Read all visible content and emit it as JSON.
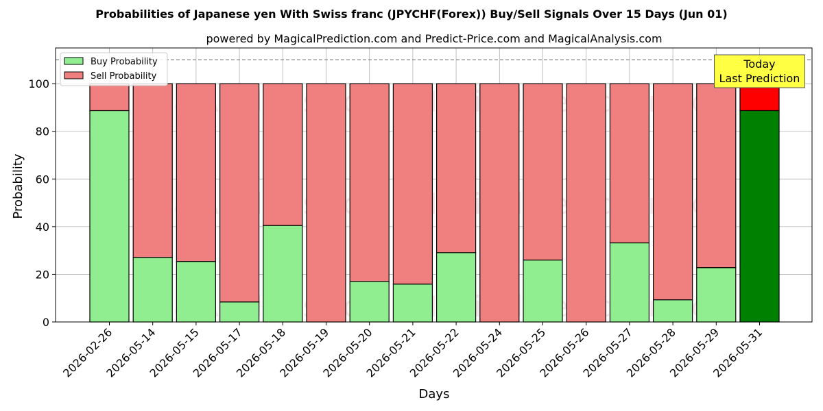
{
  "chart_data": {
    "type": "bar",
    "stacked": true,
    "title": "Probabilities of Japanese yen With Swiss franc (JPYCHF(Forex)) Buy/Sell Signals Over 15 Days (Jun 01)",
    "subtitle": "powered by MagicalPrediction.com and Predict-Price.com and MagicalAnalysis.com",
    "xlabel": "Days",
    "ylabel": "Probability",
    "ylim": [
      0,
      115
    ],
    "yticks": [
      0,
      20,
      40,
      60,
      80,
      100
    ],
    "grid": true,
    "legend_placement": "top-left",
    "categories": [
      "2026-02-26",
      "2026-05-14",
      "2026-05-15",
      "2026-05-17",
      "2026-05-18",
      "2026-05-19",
      "2026-05-20",
      "2026-05-21",
      "2026-05-22",
      "2026-05-24",
      "2026-05-25",
      "2026-05-26",
      "2026-05-27",
      "2026-05-28",
      "2026-05-29",
      "2026-05-31"
    ],
    "series": [
      {
        "name": "Buy Probability",
        "color": "#90ee90",
        "highlight_color": "#008000",
        "values": [
          88.7,
          27.1,
          25.4,
          8.4,
          40.5,
          0,
          17.0,
          15.9,
          29.1,
          0,
          26.0,
          0,
          33.2,
          9.3,
          22.8,
          88.7
        ]
      },
      {
        "name": "Sell Probability",
        "color": "#f08080",
        "highlight_color": "#ff0000",
        "values": [
          11.3,
          72.9,
          74.6,
          91.6,
          59.5,
          100,
          83.0,
          84.1,
          70.9,
          100,
          74.0,
          100,
          66.8,
          90.7,
          77.2,
          11.3
        ]
      }
    ],
    "reference_line": {
      "y": 110,
      "style": "dashed"
    },
    "annotation": {
      "lines": [
        "Today",
        "Last Prediction"
      ],
      "category_index": 15
    },
    "watermarks": [
      "MagicalAnalysis.com",
      "MagicalPrediction.com",
      "MagicalAnalysis.com",
      "MagicalPrediction.com",
      "MagicalAnalysis.com",
      "MagicalPrediction.com"
    ]
  }
}
